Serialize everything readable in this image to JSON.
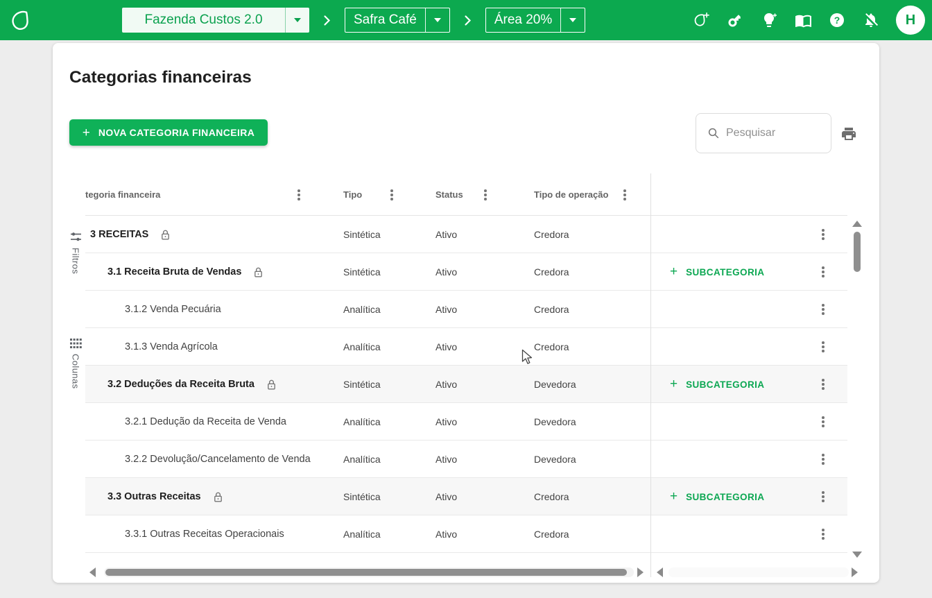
{
  "colors": {
    "brand_green": "#0CA94F",
    "button_green": "#0FB158",
    "accent_text_green": "#0CA752",
    "page_background": "#EDEDED",
    "shaded_row": "#F7F7F7"
  },
  "glyphs": {
    "plus": "+",
    "question": "?"
  },
  "appbar": {
    "logo": "aegro-leaf-logo",
    "breadcrumb": [
      {
        "label": "Fazenda Custos 2.0"
      },
      {
        "label": "Safra Café"
      },
      {
        "label": "Área 20%"
      }
    ],
    "action_icons": [
      "add-account-icon",
      "key-icon",
      "lightbulb-icon",
      "book-icon",
      "help-icon",
      "notifications-off-icon"
    ],
    "avatar_initial": "H"
  },
  "page": {
    "title": "Categorias financeiras",
    "new_category_button_label": "NOVA CATEGORIA FINANCEIRA",
    "search_placeholder": "Pesquisar"
  },
  "rail": {
    "filters_label": "Filtros",
    "columns_label": "Colunas"
  },
  "table": {
    "columns": [
      {
        "label": "tegoria financeira"
      },
      {
        "label": "Tipo"
      },
      {
        "label": "Status"
      },
      {
        "label": "Tipo de operação"
      }
    ],
    "add_subcategory_label": "SUBCATEGORIA",
    "rows": [
      {
        "name": "3 RECEITAS",
        "level": 0,
        "bold": true,
        "locked": true,
        "tipo": "Sintética",
        "status": "Ativo",
        "operacao": "Credora",
        "has_subcategory_button": false,
        "shaded": false
      },
      {
        "name": "3.1 Receita Bruta de Vendas",
        "level": 1,
        "bold": true,
        "locked": true,
        "tipo": "Sintética",
        "status": "Ativo",
        "operacao": "Credora",
        "has_subcategory_button": true,
        "shaded": false
      },
      {
        "name": "3.1.2 Venda Pecuária",
        "level": 2,
        "bold": false,
        "locked": false,
        "tipo": "Analítica",
        "status": "Ativo",
        "operacao": "Credora",
        "has_subcategory_button": false,
        "shaded": false
      },
      {
        "name": "3.1.3 Venda Agrícola",
        "level": 2,
        "bold": false,
        "locked": false,
        "tipo": "Analítica",
        "status": "Ativo",
        "operacao": "Credora",
        "has_subcategory_button": false,
        "shaded": false
      },
      {
        "name": "3.2 Deduções da Receita Bruta",
        "level": 1,
        "bold": true,
        "locked": true,
        "tipo": "Sintética",
        "status": "Ativo",
        "operacao": "Devedora",
        "has_subcategory_button": true,
        "shaded": true
      },
      {
        "name": "3.2.1 Dedução da Receita de Venda",
        "level": 2,
        "bold": false,
        "locked": false,
        "tipo": "Analítica",
        "status": "Ativo",
        "operacao": "Devedora",
        "has_subcategory_button": false,
        "shaded": false
      },
      {
        "name": "3.2.2 Devolução/Cancelamento de Venda",
        "level": 2,
        "bold": false,
        "locked": false,
        "tipo": "Analítica",
        "status": "Ativo",
        "operacao": "Devedora",
        "has_subcategory_button": false,
        "shaded": false
      },
      {
        "name": "3.3 Outras Receitas",
        "level": 1,
        "bold": true,
        "locked": true,
        "tipo": "Sintética",
        "status": "Ativo",
        "operacao": "Credora",
        "has_subcategory_button": true,
        "shaded": true
      },
      {
        "name": "3.3.1 Outras Receitas Operacionais",
        "level": 2,
        "bold": false,
        "locked": false,
        "tipo": "Analítica",
        "status": "Ativo",
        "operacao": "Credora",
        "has_subcategory_button": false,
        "shaded": false
      }
    ]
  }
}
